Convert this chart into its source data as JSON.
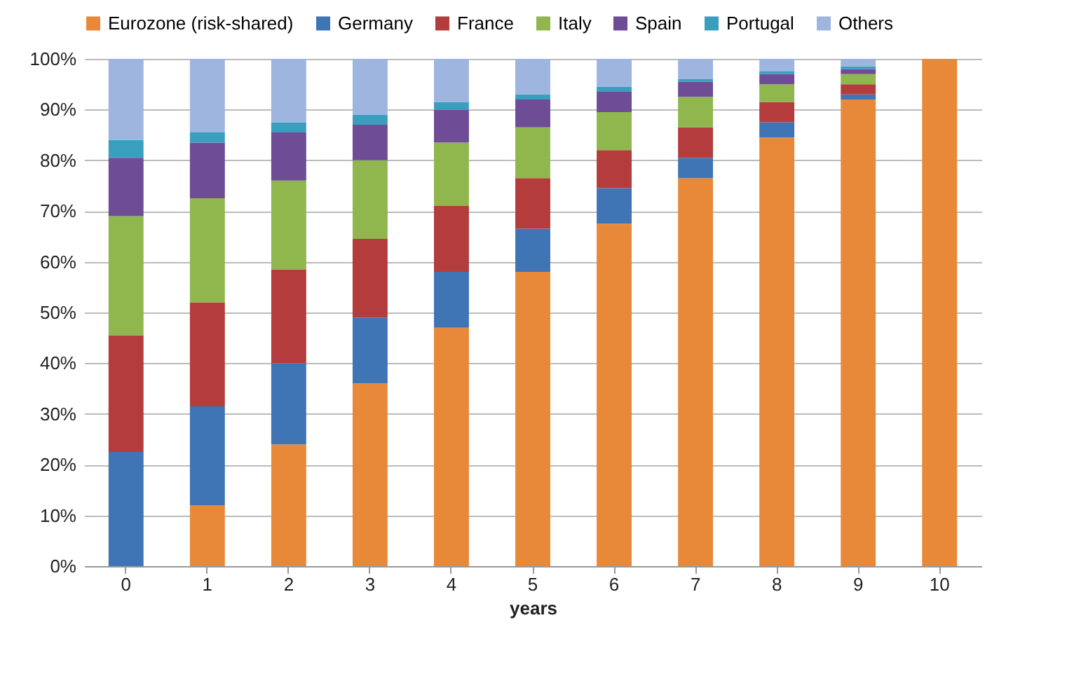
{
  "chart_data": {
    "type": "bar",
    "stacked": true,
    "xlabel": "years",
    "categories": [
      "0",
      "1",
      "2",
      "3",
      "4",
      "5",
      "6",
      "7",
      "8",
      "9",
      "10"
    ],
    "series": [
      {
        "name": "Eurozone (risk-shared)",
        "color": "#e8893a",
        "values": [
          0,
          12,
          24,
          36,
          47,
          58,
          67.5,
          76.5,
          84.5,
          92,
          100
        ]
      },
      {
        "name": "Germany",
        "color": "#3f74b5",
        "values": [
          22.5,
          19.5,
          16,
          13,
          11,
          8.5,
          7,
          4,
          3,
          1,
          0
        ]
      },
      {
        "name": "France",
        "color": "#b43c3c",
        "values": [
          23,
          20.5,
          18.5,
          15.5,
          13,
          10,
          7.5,
          6,
          4,
          2,
          0
        ]
      },
      {
        "name": "Italy",
        "color": "#8fb74e",
        "values": [
          23.5,
          20.5,
          17.5,
          15.5,
          12.5,
          10,
          7.5,
          6,
          3.5,
          2,
          0
        ]
      },
      {
        "name": "Spain",
        "color": "#6e4c96",
        "values": [
          11.5,
          11,
          9.5,
          7,
          6.5,
          5.5,
          4,
          3,
          2,
          1,
          0
        ]
      },
      {
        "name": "Portugal",
        "color": "#3a9fbf",
        "values": [
          3.5,
          2,
          2,
          2,
          1.5,
          1,
          1,
          0.5,
          0.5,
          0.5,
          0
        ]
      },
      {
        "name": "Others",
        "color": "#9db5df",
        "values": [
          16,
          14.5,
          12.5,
          11,
          8.5,
          7,
          5.5,
          4,
          2.5,
          1.5,
          0
        ]
      }
    ],
    "ylim": [
      0,
      100
    ],
    "yticks": [
      {
        "value": 0,
        "label": "0%"
      },
      {
        "value": 10,
        "label": "10%"
      },
      {
        "value": 20,
        "label": "20%"
      },
      {
        "value": 30,
        "label": "30%"
      },
      {
        "value": 40,
        "label": "40%"
      },
      {
        "value": 50,
        "label": "50%"
      },
      {
        "value": 60,
        "label": "60%"
      },
      {
        "value": 70,
        "label": "70%"
      },
      {
        "value": 80,
        "label": "80%"
      },
      {
        "value": 90,
        "label": "90%"
      },
      {
        "value": 100,
        "label": "100%"
      }
    ],
    "grid": "y",
    "legend": "top"
  }
}
